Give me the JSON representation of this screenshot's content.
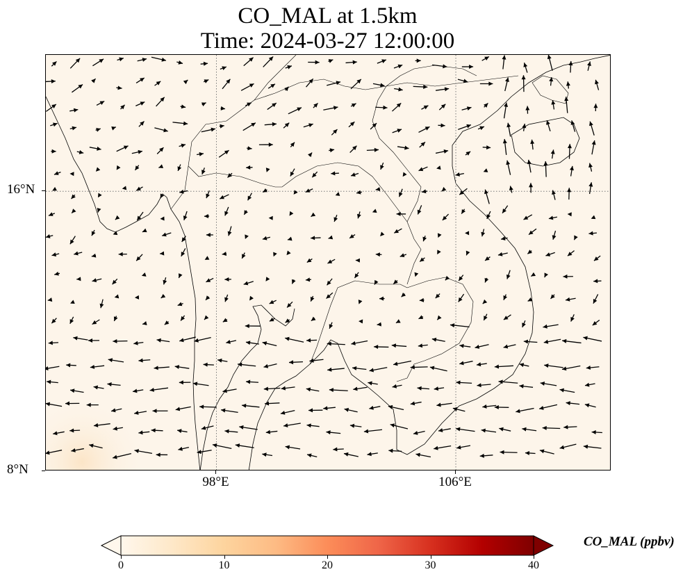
{
  "title": {
    "line1": "CO_MAL at 1.5km",
    "line2": "Time: 2024-03-27 12:00:00"
  },
  "map": {
    "extent": {
      "lon_min": 92.3,
      "lon_max": 111.2,
      "lat_min": 8.0,
      "lat_max": 19.9
    },
    "background_color": "#fdf5ea",
    "gridlines": {
      "style": "dotted",
      "lon": [
        98,
        106
      ],
      "lat": [
        16
      ]
    },
    "lat_ticks": [
      {
        "value": 16,
        "label": "16°N"
      },
      {
        "value": 8,
        "label": "8°N"
      }
    ],
    "lon_ticks": [
      {
        "value": 98,
        "label": "98°E"
      },
      {
        "value": 106,
        "label": "106°E"
      }
    ],
    "overlays": [
      "coastlines",
      "country-borders",
      "wind-vectors"
    ]
  },
  "colorbar": {
    "label": "CO_MAL (ppbv)",
    "min": 0,
    "max": 40,
    "extend": "both",
    "ticks": [
      0,
      10,
      20,
      30,
      40
    ],
    "colormap": [
      "#fff7ec",
      "#fee8c8",
      "#fdd49e",
      "#fdbb84",
      "#fc8d59",
      "#ef6548",
      "#d7301f",
      "#b30000",
      "#7f0000"
    ]
  }
}
